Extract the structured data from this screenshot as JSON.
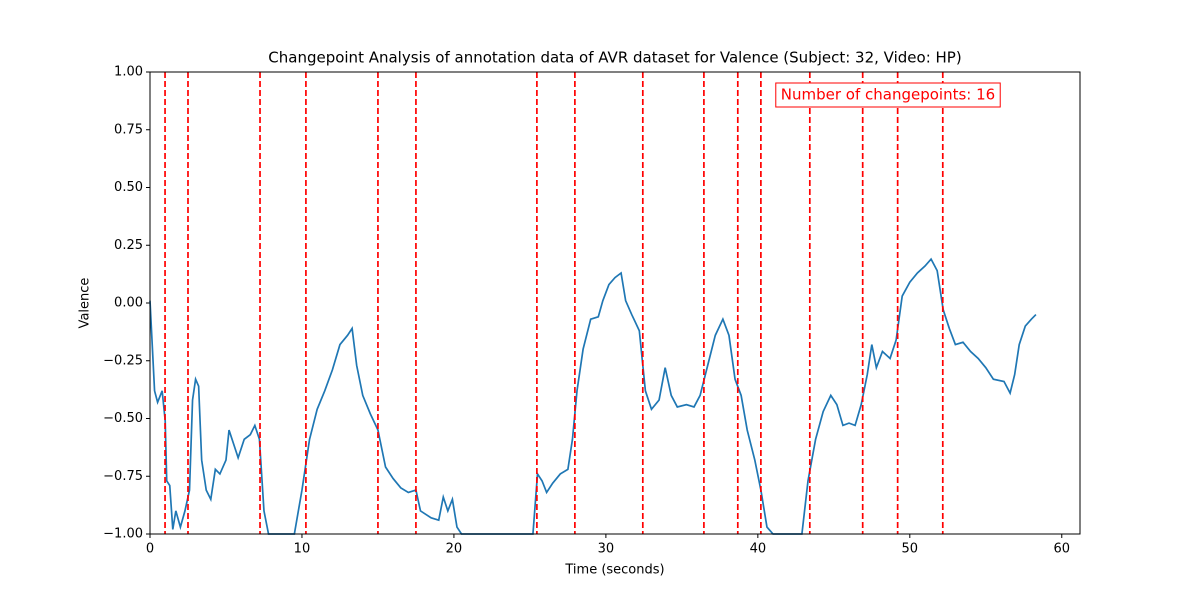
{
  "chart_data": {
    "type": "line",
    "title": "Changepoint Analysis of annotation data of AVR dataset for Valence (Subject: 32, Video: HP)",
    "x_label": "Time (seconds)",
    "y_label": "Valence",
    "x": [
      0,
      0.3,
      0.5,
      0.8,
      1.0,
      1.1,
      1.3,
      1.5,
      1.7,
      2.0,
      2.3,
      2.6,
      2.8,
      3.0,
      3.2,
      3.4,
      3.7,
      4.0,
      4.3,
      4.6,
      5.0,
      5.2,
      5.5,
      5.8,
      6.2,
      6.6,
      6.9,
      7.2,
      7.5,
      7.8,
      9.5,
      10.0,
      10.5,
      11.0,
      11.5,
      12.0,
      12.5,
      13.0,
      13.3,
      13.6,
      14.0,
      14.5,
      15.0,
      15.5,
      16.0,
      16.5,
      17.0,
      17.5,
      17.8,
      18.5,
      19.0,
      19.3,
      19.6,
      19.9,
      20.2,
      20.5,
      25.2,
      25.5,
      25.8,
      26.1,
      26.5,
      27.0,
      27.5,
      27.8,
      28.1,
      28.5,
      29.0,
      29.5,
      29.8,
      30.2,
      30.6,
      31.0,
      31.3,
      31.7,
      32.2,
      32.6,
      33.0,
      33.5,
      33.9,
      34.3,
      34.7,
      35.3,
      35.8,
      36.2,
      36.7,
      37.2,
      37.7,
      38.1,
      38.5,
      38.9,
      39.3,
      39.8,
      40.2,
      40.6,
      41.0,
      42.9,
      43.3,
      43.8,
      44.3,
      44.8,
      45.2,
      45.6,
      46.0,
      46.4,
      46.8,
      47.2,
      47.5,
      47.8,
      48.2,
      48.7,
      49.1,
      49.5,
      50.0,
      50.5,
      51.0,
      51.4,
      51.8,
      52.2,
      52.6,
      53.0,
      53.5,
      54.0,
      54.5,
      55.0,
      55.5,
      56.2,
      56.6,
      56.9,
      57.2,
      57.6,
      58.0,
      58.3
    ],
    "values": [
      0.01,
      -0.38,
      -0.43,
      -0.38,
      -0.51,
      -0.77,
      -0.79,
      -0.98,
      -0.9,
      -0.97,
      -0.9,
      -0.81,
      -0.42,
      -0.33,
      -0.36,
      -0.68,
      -0.81,
      -0.85,
      -0.72,
      -0.74,
      -0.68,
      -0.55,
      -0.61,
      -0.67,
      -0.59,
      -0.57,
      -0.53,
      -0.59,
      -0.9,
      -1.0,
      -1.0,
      -0.81,
      -0.59,
      -0.46,
      -0.38,
      -0.29,
      -0.18,
      -0.14,
      -0.11,
      -0.27,
      -0.4,
      -0.48,
      -0.55,
      -0.71,
      -0.76,
      -0.8,
      -0.82,
      -0.81,
      -0.9,
      -0.93,
      -0.94,
      -0.84,
      -0.9,
      -0.85,
      -0.97,
      -1.0,
      -1.0,
      -0.74,
      -0.77,
      -0.82,
      -0.78,
      -0.74,
      -0.72,
      -0.59,
      -0.38,
      -0.2,
      -0.07,
      -0.06,
      0.01,
      0.08,
      0.11,
      0.13,
      0.01,
      -0.05,
      -0.12,
      -0.38,
      -0.46,
      -0.42,
      -0.28,
      -0.4,
      -0.45,
      -0.44,
      -0.45,
      -0.4,
      -0.27,
      -0.14,
      -0.07,
      -0.14,
      -0.33,
      -0.4,
      -0.55,
      -0.68,
      -0.81,
      -0.97,
      -1.0,
      -1.0,
      -0.77,
      -0.59,
      -0.47,
      -0.4,
      -0.44,
      -0.53,
      -0.52,
      -0.53,
      -0.44,
      -0.31,
      -0.18,
      -0.28,
      -0.21,
      -0.24,
      -0.16,
      0.03,
      0.09,
      0.13,
      0.16,
      0.19,
      0.14,
      -0.03,
      -0.11,
      -0.18,
      -0.17,
      -0.21,
      -0.24,
      -0.28,
      -0.33,
      -0.34,
      -0.39,
      -0.31,
      -0.18,
      -0.1,
      -0.07,
      -0.05
    ],
    "color": "#1f77b4",
    "changepoints": [
      0.99,
      2.5,
      7.24,
      10.26,
      15.0,
      17.5,
      25.46,
      27.96,
      32.43,
      36.45,
      38.68,
      40.2,
      43.42,
      46.9,
      49.2,
      52.17
    ],
    "changepoint_color": "#ff0000",
    "annotation": "Number of changepoints: 16",
    "xlim": [
      0,
      61.2
    ],
    "xticks": [
      0,
      10,
      20,
      30,
      40,
      50,
      60
    ],
    "ylim": [
      -1,
      1
    ],
    "yticks": [
      {
        "value": -1,
        "label": "−1.00"
      },
      {
        "value": -0.75,
        "label": "−0.75"
      },
      {
        "value": -0.5,
        "label": "−0.50"
      },
      {
        "value": -0.25,
        "label": "−0.25"
      },
      {
        "value": 0,
        "label": "0.00"
      },
      {
        "value": 0.25,
        "label": "0.25"
      },
      {
        "value": 0.5,
        "label": "0.50"
      },
      {
        "value": 0.75,
        "label": "0.75"
      },
      {
        "value": 1,
        "label": "1.00"
      }
    ]
  }
}
